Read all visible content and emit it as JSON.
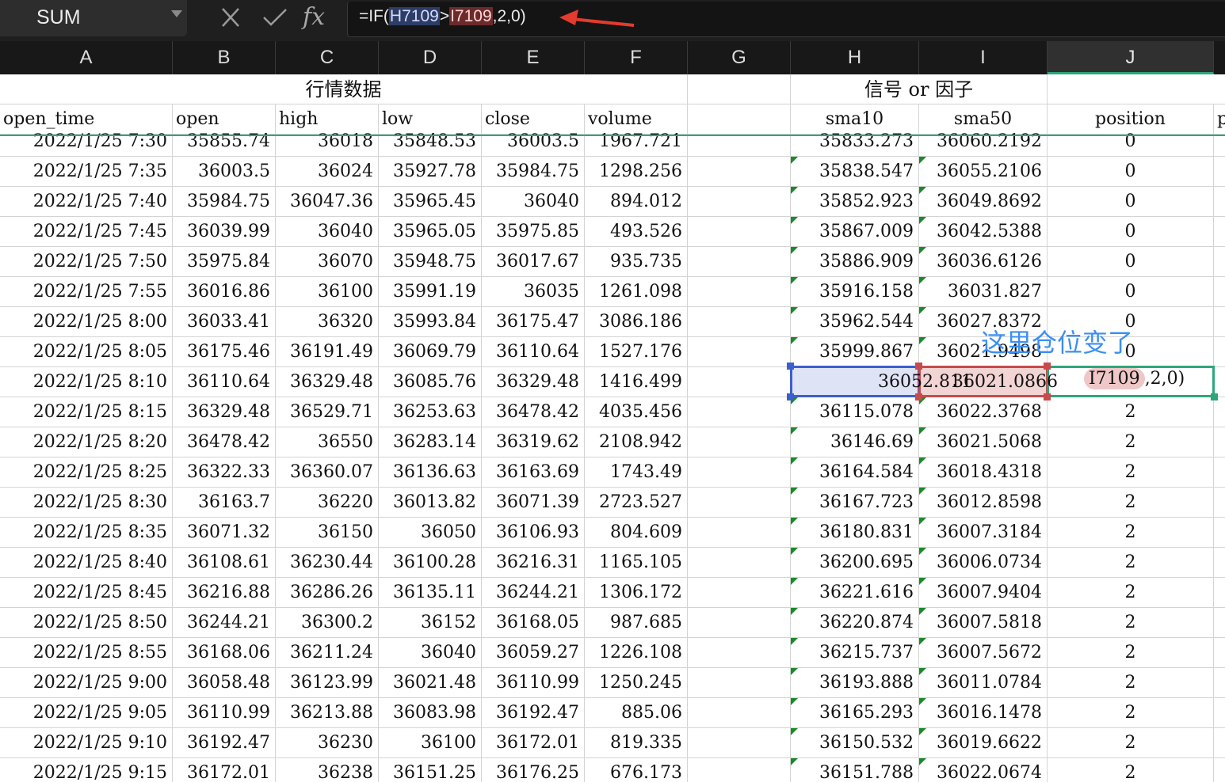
{
  "name_box": {
    "value": "SUM"
  },
  "toolbar": {
    "cancel_icon": "close-icon",
    "confirm_icon": "check-icon",
    "fx_label": "fx"
  },
  "formula_bar": {
    "prefix": "=IF(",
    "ref1": "H7109",
    "op": ">",
    "ref2": "I7109",
    "suffix": ",2,0)"
  },
  "columns": [
    "A",
    "B",
    "C",
    "D",
    "E",
    "F",
    "G",
    "H",
    "I",
    "J"
  ],
  "selected_column": "J",
  "group_headers": {
    "market": "行情数据",
    "signal": "信号 or 因子"
  },
  "field_headers": {
    "A": "open_time",
    "B": "open",
    "C": "high",
    "D": "low",
    "E": "close",
    "F": "volume",
    "H": "sma10",
    "I": "sma50",
    "J": "position",
    "K": "p"
  },
  "rows": [
    [
      "2022/1/25 7:30",
      "35855.74",
      "36018",
      "35848.53",
      "36003.5",
      "1967.721",
      "35833.273",
      "36060.2192",
      "0"
    ],
    [
      "2022/1/25 7:35",
      "36003.5",
      "36024",
      "35927.78",
      "35984.75",
      "1298.256",
      "35838.547",
      "36055.2106",
      "0"
    ],
    [
      "2022/1/25 7:40",
      "35984.75",
      "36047.36",
      "35965.45",
      "36040",
      "894.012",
      "35852.923",
      "36049.8692",
      "0"
    ],
    [
      "2022/1/25 7:45",
      "36039.99",
      "36040",
      "35965.05",
      "35975.85",
      "493.526",
      "35867.009",
      "36042.5388",
      "0"
    ],
    [
      "2022/1/25 7:50",
      "35975.84",
      "36070",
      "35948.75",
      "36017.67",
      "935.735",
      "35886.909",
      "36036.6126",
      "0"
    ],
    [
      "2022/1/25 7:55",
      "36016.86",
      "36100",
      "35991.19",
      "36035",
      "1261.098",
      "35916.158",
      "36031.827",
      "0"
    ],
    [
      "2022/1/25 8:00",
      "36033.41",
      "36320",
      "35993.84",
      "36175.47",
      "3086.186",
      "35962.544",
      "36027.8372",
      "0"
    ],
    [
      "2022/1/25 8:05",
      "36175.46",
      "36191.49",
      "36069.79",
      "36110.64",
      "1527.176",
      "35999.867",
      "36021.9498",
      "0"
    ],
    [
      "2022/1/25 8:10",
      "36110.64",
      "36329.48",
      "36085.76",
      "36329.48",
      "1416.499",
      "36052.811",
      "36021.0866",
      ""
    ],
    [
      "2022/1/25 8:15",
      "36329.48",
      "36529.71",
      "36253.63",
      "36478.42",
      "4035.456",
      "36115.078",
      "36022.3768",
      "2"
    ],
    [
      "2022/1/25 8:20",
      "36478.42",
      "36550",
      "36283.14",
      "36319.62",
      "2108.942",
      "36146.69",
      "36021.5068",
      "2"
    ],
    [
      "2022/1/25 8:25",
      "36322.33",
      "36360.07",
      "36136.63",
      "36163.69",
      "1743.49",
      "36164.584",
      "36018.4318",
      "2"
    ],
    [
      "2022/1/25 8:30",
      "36163.7",
      "36220",
      "36013.82",
      "36071.39",
      "2723.527",
      "36167.723",
      "36012.8598",
      "2"
    ],
    [
      "2022/1/25 8:35",
      "36071.32",
      "36150",
      "36050",
      "36106.93",
      "804.609",
      "36180.831",
      "36007.3184",
      "2"
    ],
    [
      "2022/1/25 8:40",
      "36108.61",
      "36230.44",
      "36100.28",
      "36216.31",
      "1165.105",
      "36200.695",
      "36006.0734",
      "2"
    ],
    [
      "2022/1/25 8:45",
      "36216.88",
      "36286.26",
      "36135.11",
      "36244.21",
      "1306.172",
      "36221.616",
      "36007.9404",
      "2"
    ],
    [
      "2022/1/25 8:50",
      "36244.21",
      "36300.2",
      "36152",
      "36168.05",
      "987.685",
      "36220.874",
      "36007.5818",
      "2"
    ],
    [
      "2022/1/25 8:55",
      "36168.06",
      "36211.24",
      "36040",
      "36059.27",
      "1226.108",
      "36215.737",
      "36007.5672",
      "2"
    ],
    [
      "2022/1/25 9:00",
      "36058.48",
      "36123.99",
      "36021.48",
      "36110.99",
      "1250.245",
      "36193.888",
      "36011.0784",
      "2"
    ],
    [
      "2022/1/25 9:05",
      "36110.99",
      "36213.88",
      "36083.98",
      "36192.47",
      "885.06",
      "36165.293",
      "36016.1478",
      "2"
    ],
    [
      "2022/1/25 9:10",
      "36192.47",
      "36230",
      "36100",
      "36172.01",
      "819.335",
      "36150.532",
      "36019.6622",
      "2"
    ],
    [
      "2022/1/25 9:15",
      "36172.01",
      "36238",
      "36151.25",
      "36176.25",
      "676.173",
      "36151.788",
      "36022.0674",
      "2"
    ]
  ],
  "editing_cell": {
    "ref": "I7109",
    "rest": ",2,0)"
  },
  "annotation": "这里仓位变了",
  "colors": {
    "selected_h": "#3c5fcf",
    "selected_i": "#c84a4a",
    "selected_j": "#2ea67a",
    "annotation": "#3b8ff3",
    "error_triangle": "#1a8a2a"
  }
}
